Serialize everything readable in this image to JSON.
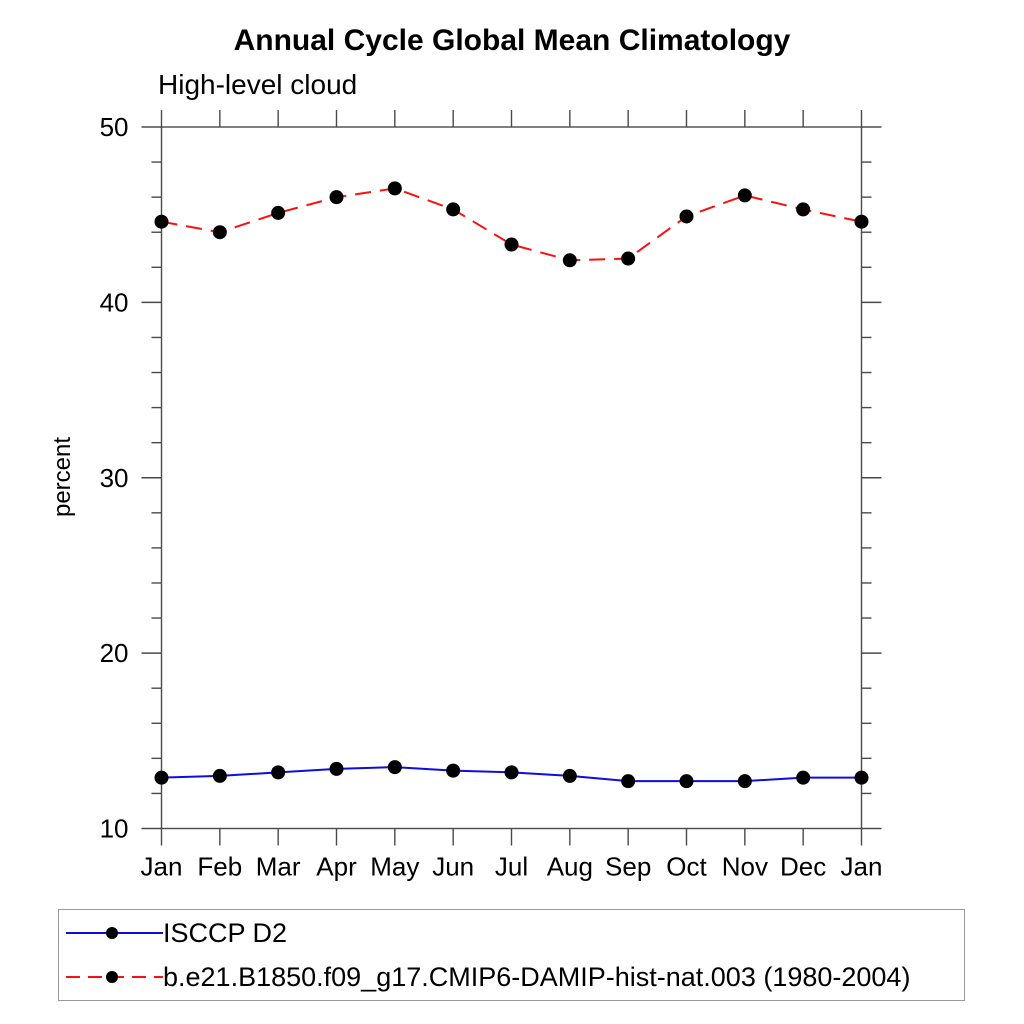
{
  "chart_data": {
    "type": "line",
    "title": "Annual Cycle Global Mean Climatology",
    "subtitle": "High-level cloud",
    "ylabel": "percent",
    "xlabel": "",
    "ylim": [
      10,
      50
    ],
    "ytick_major_step": 10,
    "ytick_minor_step": 2,
    "grid": false,
    "legend_position": "bottom",
    "categories": [
      "Jan",
      "Feb",
      "Mar",
      "Apr",
      "May",
      "Jun",
      "Jul",
      "Aug",
      "Sep",
      "Oct",
      "Nov",
      "Dec",
      "Jan"
    ],
    "series": [
      {
        "name": "ISCCP D2",
        "line_style": "solid",
        "color": "#0d0de0",
        "marker": "dot",
        "marker_color": "#000000",
        "values": [
          12.9,
          13.0,
          13.2,
          13.4,
          13.5,
          13.3,
          13.2,
          13.0,
          12.7,
          12.7,
          12.7,
          12.9,
          12.9
        ]
      },
      {
        "name": "b.e21.B1850.f09_g17.CMIP6-DAMIP-hist-nat.003 (1980-2004)",
        "line_style": "dashed",
        "color": "#fb0f0f",
        "marker": "dot",
        "marker_color": "#000000",
        "values": [
          44.6,
          44.0,
          45.1,
          46.0,
          46.5,
          45.3,
          43.3,
          42.4,
          42.5,
          44.9,
          46.1,
          45.3,
          44.6
        ]
      }
    ],
    "axis_color": "#4a4a4a",
    "text_color": "#000000"
  }
}
